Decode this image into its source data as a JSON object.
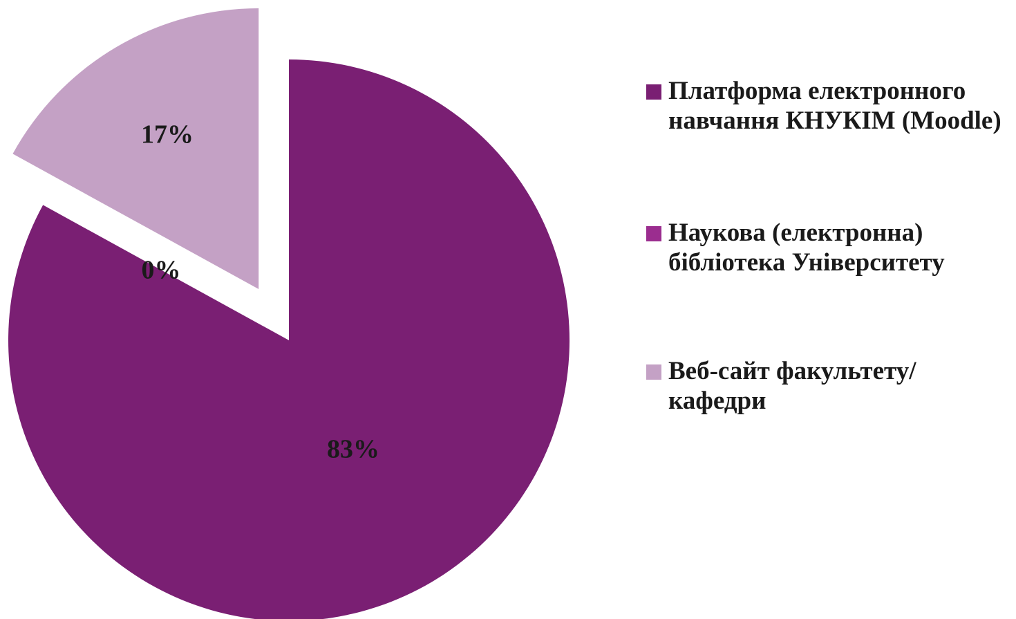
{
  "chart_data": {
    "type": "pie",
    "title": "",
    "slices": [
      {
        "label": "Платформа електронного навчання КНУКІМ (Moodle)",
        "value": 83,
        "display": "83%",
        "color": "#7a1f73",
        "exploded": false
      },
      {
        "label": "Наукова (електронна) бібліотека Університету",
        "value": 0,
        "display": "0%",
        "color": "#9b2d8f",
        "exploded": false
      },
      {
        "label": "Веб-сайт факультету/кафедри",
        "value": 17,
        "display": "17%",
        "color": "#c4a1c5",
        "exploded": true
      }
    ],
    "legend_position": "right"
  }
}
